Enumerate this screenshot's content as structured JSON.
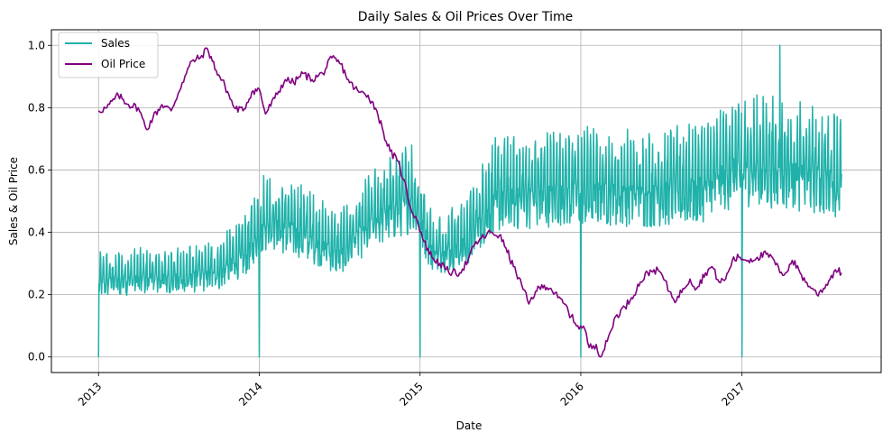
{
  "chart_data": {
    "type": "line",
    "title": "Daily Sales & Oil Prices Over Time",
    "xlabel": "Date",
    "ylabel": "Sales & Oil Price",
    "xlim": [
      "2012-09-16",
      "2017-11-13"
    ],
    "ylim": [
      -0.05,
      1.05
    ],
    "x_ticks": [
      "2013",
      "2014",
      "2015",
      "2016",
      "2017"
    ],
    "y_ticks": [
      "0.0",
      "0.2",
      "0.4",
      "0.6",
      "0.8",
      "1.0"
    ],
    "grid": true,
    "legend_position": "top-left",
    "colors": {
      "sales": "#20b2aa",
      "oil": "#800080"
    },
    "series": [
      {
        "name": "Sales",
        "kind": "daily-sales",
        "trend": [
          [
            "2013-01-01",
            0.24
          ],
          [
            "2013-04-01",
            0.25
          ],
          [
            "2013-07-01",
            0.25
          ],
          [
            "2013-10-01",
            0.27
          ],
          [
            "2013-12-01",
            0.33
          ],
          [
            "2014-01-15",
            0.43
          ],
          [
            "2014-04-01",
            0.4
          ],
          [
            "2014-07-01",
            0.33
          ],
          [
            "2014-10-01",
            0.45
          ],
          [
            "2014-12-15",
            0.5
          ],
          [
            "2015-02-01",
            0.33
          ],
          [
            "2015-04-15",
            0.36
          ],
          [
            "2015-06-15",
            0.5
          ],
          [
            "2015-10-01",
            0.52
          ],
          [
            "2016-01-15",
            0.53
          ],
          [
            "2016-06-01",
            0.52
          ],
          [
            "2016-10-01",
            0.54
          ],
          [
            "2016-12-15",
            0.6
          ],
          [
            "2017-03-01",
            0.6
          ],
          [
            "2017-06-01",
            0.58
          ],
          [
            "2017-08-15",
            0.56
          ]
        ],
        "drops_to_zero": [
          "2013-01-01",
          "2014-01-01",
          "2015-01-01",
          "2016-01-01",
          "2017-01-01"
        ],
        "peak": [
          "2017-03-28",
          1.0
        ]
      },
      {
        "name": "Oil Price",
        "points": [
          [
            "2013-01-01",
            0.79
          ],
          [
            "2013-01-20",
            0.8
          ],
          [
            "2013-02-15",
            0.84
          ],
          [
            "2013-03-10",
            0.81
          ],
          [
            "2013-04-01",
            0.8
          ],
          [
            "2013-04-20",
            0.73
          ],
          [
            "2013-05-05",
            0.77
          ],
          [
            "2013-05-25",
            0.81
          ],
          [
            "2013-06-15",
            0.79
          ],
          [
            "2013-07-10",
            0.88
          ],
          [
            "2013-08-01",
            0.95
          ],
          [
            "2013-08-20",
            0.96
          ],
          [
            "2013-09-05",
            0.99
          ],
          [
            "2013-09-25",
            0.92
          ],
          [
            "2013-10-15",
            0.87
          ],
          [
            "2013-11-05",
            0.8
          ],
          [
            "2013-11-25",
            0.79
          ],
          [
            "2013-12-15",
            0.85
          ],
          [
            "2014-01-01",
            0.86
          ],
          [
            "2014-01-15",
            0.78
          ],
          [
            "2014-02-05",
            0.83
          ],
          [
            "2014-03-01",
            0.89
          ],
          [
            "2014-03-20",
            0.88
          ],
          [
            "2014-04-10",
            0.91
          ],
          [
            "2014-05-01",
            0.89
          ],
          [
            "2014-05-25",
            0.91
          ],
          [
            "2014-06-15",
            0.96
          ],
          [
            "2014-07-05",
            0.94
          ],
          [
            "2014-07-25",
            0.88
          ],
          [
            "2014-08-15",
            0.85
          ],
          [
            "2014-09-05",
            0.84
          ],
          [
            "2014-09-25",
            0.79
          ],
          [
            "2014-10-10",
            0.72
          ],
          [
            "2014-10-25",
            0.66
          ],
          [
            "2014-11-10",
            0.63
          ],
          [
            "2014-11-25",
            0.57
          ],
          [
            "2014-12-10",
            0.48
          ],
          [
            "2014-12-25",
            0.44
          ],
          [
            "2015-01-10",
            0.37
          ],
          [
            "2015-01-28",
            0.32
          ],
          [
            "2015-02-15",
            0.3
          ],
          [
            "2015-03-01",
            0.28
          ],
          [
            "2015-03-15",
            0.27
          ],
          [
            "2015-04-01",
            0.27
          ],
          [
            "2015-04-20",
            0.31
          ],
          [
            "2015-05-05",
            0.36
          ],
          [
            "2015-05-20",
            0.38
          ],
          [
            "2015-06-10",
            0.4
          ],
          [
            "2015-06-30",
            0.39
          ],
          [
            "2015-07-15",
            0.35
          ],
          [
            "2015-08-01",
            0.29
          ],
          [
            "2015-08-20",
            0.23
          ],
          [
            "2015-09-05",
            0.17
          ],
          [
            "2015-09-20",
            0.21
          ],
          [
            "2015-10-10",
            0.23
          ],
          [
            "2015-10-25",
            0.22
          ],
          [
            "2015-11-10",
            0.19
          ],
          [
            "2015-11-25",
            0.17
          ],
          [
            "2015-12-10",
            0.13
          ],
          [
            "2015-12-25",
            0.1
          ],
          [
            "2016-01-10",
            0.09
          ],
          [
            "2016-01-20",
            0.03
          ],
          [
            "2016-02-05",
            0.04
          ],
          [
            "2016-02-15",
            0.0
          ],
          [
            "2016-03-01",
            0.05
          ],
          [
            "2016-03-20",
            0.13
          ],
          [
            "2016-04-10",
            0.16
          ],
          [
            "2016-04-25",
            0.19
          ],
          [
            "2016-05-15",
            0.24
          ],
          [
            "2016-06-01",
            0.27
          ],
          [
            "2016-06-15",
            0.28
          ],
          [
            "2016-07-01",
            0.27
          ],
          [
            "2016-07-20",
            0.21
          ],
          [
            "2016-08-05",
            0.18
          ],
          [
            "2016-08-20",
            0.22
          ],
          [
            "2016-09-05",
            0.25
          ],
          [
            "2016-09-20",
            0.22
          ],
          [
            "2016-10-10",
            0.27
          ],
          [
            "2016-10-25",
            0.29
          ],
          [
            "2016-11-10",
            0.24
          ],
          [
            "2016-11-25",
            0.25
          ],
          [
            "2016-12-10",
            0.31
          ],
          [
            "2016-12-25",
            0.32
          ],
          [
            "2017-01-15",
            0.31
          ],
          [
            "2017-02-05",
            0.32
          ],
          [
            "2017-02-25",
            0.33
          ],
          [
            "2017-03-15",
            0.31
          ],
          [
            "2017-03-28",
            0.27
          ],
          [
            "2017-04-10",
            0.27
          ],
          [
            "2017-04-25",
            0.31
          ],
          [
            "2017-05-10",
            0.28
          ],
          [
            "2017-05-25",
            0.24
          ],
          [
            "2017-06-10",
            0.22
          ],
          [
            "2017-06-20",
            0.2
          ],
          [
            "2017-07-05",
            0.22
          ],
          [
            "2017-07-20",
            0.25
          ],
          [
            "2017-08-01",
            0.28
          ],
          [
            "2017-08-15",
            0.27
          ]
        ]
      }
    ]
  }
}
